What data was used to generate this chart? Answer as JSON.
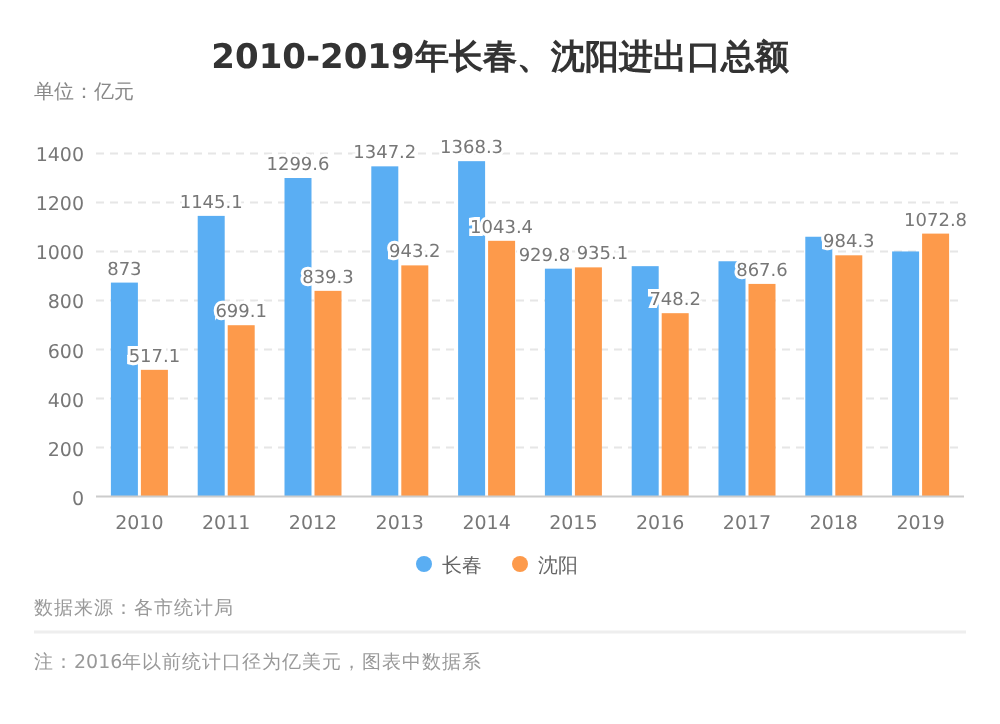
{
  "chart_data": {
    "type": "bar",
    "title": "2010-2019年长春、沈阳进出口总额",
    "subtitle": "单位：亿元",
    "categories": [
      "2010",
      "2011",
      "2012",
      "2013",
      "2014",
      "2015",
      "2016",
      "2017",
      "2018",
      "2019"
    ],
    "series": [
      {
        "name": "长春",
        "color": "#5aaef3",
        "values": [
          873,
          1145.1,
          1299.6,
          1347.2,
          1368.3,
          929.8,
          940,
          960,
          1060,
          1000
        ],
        "value_labels": [
          "873",
          "1145.1",
          "1299.6",
          "1347.2",
          "1368.3",
          "929.8",
          null,
          null,
          null,
          null
        ]
      },
      {
        "name": "沈阳",
        "color": "#fd9a4b",
        "values": [
          517.1,
          699.1,
          839.3,
          943.2,
          1043.4,
          935.1,
          748.2,
          867.6,
          984.3,
          1072.8
        ],
        "value_labels": [
          "517.1",
          "699.1",
          "839.3",
          "943.2",
          "1043.4",
          "935.1",
          "748.2",
          "867.6",
          "984.3",
          "1072.8"
        ]
      }
    ],
    "ylim": [
      0,
      1400
    ],
    "yticks": [
      0,
      200,
      400,
      600,
      800,
      1000,
      1200,
      1400
    ],
    "grid": "y",
    "legend": "bottom",
    "annotations": [
      "数据来源：各市统计局",
      "注：2016年以前统计口径为亿美元，图表中数据系"
    ]
  }
}
